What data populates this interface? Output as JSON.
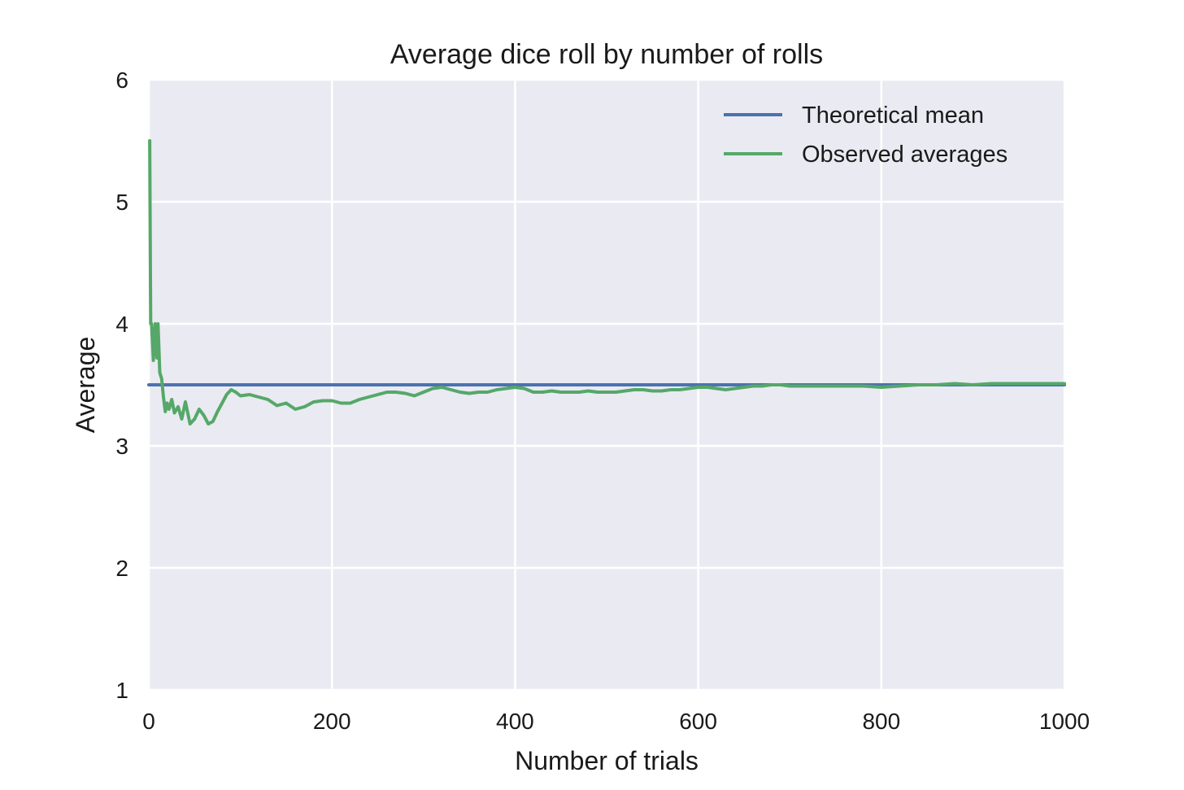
{
  "chart_data": {
    "type": "line",
    "title": "Average dice roll by number of rolls",
    "xlabel": "Number of trials",
    "ylabel": "Average",
    "xlim": [
      0,
      1000
    ],
    "ylim": [
      1,
      6
    ],
    "xticks": [
      0,
      200,
      400,
      600,
      800,
      1000
    ],
    "yticks": [
      1,
      2,
      3,
      4,
      5,
      6
    ],
    "grid": true,
    "legend_position": "top-right",
    "series": [
      {
        "name": "Theoretical mean",
        "color": "#4c72b0",
        "x": [
          0,
          1000
        ],
        "y": [
          3.5,
          3.5
        ]
      },
      {
        "name": "Observed averages",
        "color": "#55a868",
        "x": [
          1,
          2,
          3,
          5,
          7,
          9,
          10,
          12,
          14,
          16,
          18,
          20,
          22,
          25,
          28,
          32,
          36,
          40,
          45,
          50,
          55,
          60,
          65,
          70,
          75,
          80,
          85,
          90,
          95,
          100,
          110,
          120,
          130,
          140,
          150,
          160,
          170,
          180,
          190,
          200,
          210,
          220,
          230,
          240,
          250,
          260,
          270,
          280,
          290,
          300,
          310,
          320,
          330,
          340,
          350,
          360,
          370,
          380,
          390,
          400,
          410,
          420,
          430,
          440,
          450,
          460,
          470,
          480,
          490,
          500,
          510,
          520,
          530,
          540,
          550,
          560,
          570,
          580,
          590,
          600,
          610,
          620,
          630,
          640,
          650,
          660,
          670,
          680,
          690,
          700,
          720,
          740,
          760,
          780,
          800,
          820,
          840,
          860,
          880,
          900,
          920,
          940,
          960,
          980,
          1000
        ],
        "y": [
          5.5,
          4.0,
          4.0,
          3.7,
          4.0,
          3.72,
          4.0,
          3.6,
          3.55,
          3.4,
          3.28,
          3.35,
          3.3,
          3.38,
          3.27,
          3.32,
          3.22,
          3.36,
          3.18,
          3.22,
          3.3,
          3.25,
          3.18,
          3.2,
          3.28,
          3.35,
          3.42,
          3.46,
          3.44,
          3.41,
          3.42,
          3.4,
          3.38,
          3.33,
          3.35,
          3.3,
          3.32,
          3.36,
          3.37,
          3.37,
          3.35,
          3.35,
          3.38,
          3.4,
          3.42,
          3.44,
          3.44,
          3.43,
          3.41,
          3.44,
          3.47,
          3.48,
          3.46,
          3.44,
          3.43,
          3.44,
          3.44,
          3.46,
          3.47,
          3.48,
          3.47,
          3.44,
          3.44,
          3.45,
          3.44,
          3.44,
          3.44,
          3.45,
          3.44,
          3.44,
          3.44,
          3.45,
          3.46,
          3.46,
          3.45,
          3.45,
          3.46,
          3.46,
          3.47,
          3.48,
          3.48,
          3.47,
          3.46,
          3.47,
          3.48,
          3.49,
          3.49,
          3.5,
          3.5,
          3.49,
          3.49,
          3.49,
          3.49,
          3.49,
          3.48,
          3.49,
          3.5,
          3.5,
          3.51,
          3.5,
          3.51,
          3.51,
          3.51,
          3.51,
          3.51
        ]
      }
    ]
  }
}
